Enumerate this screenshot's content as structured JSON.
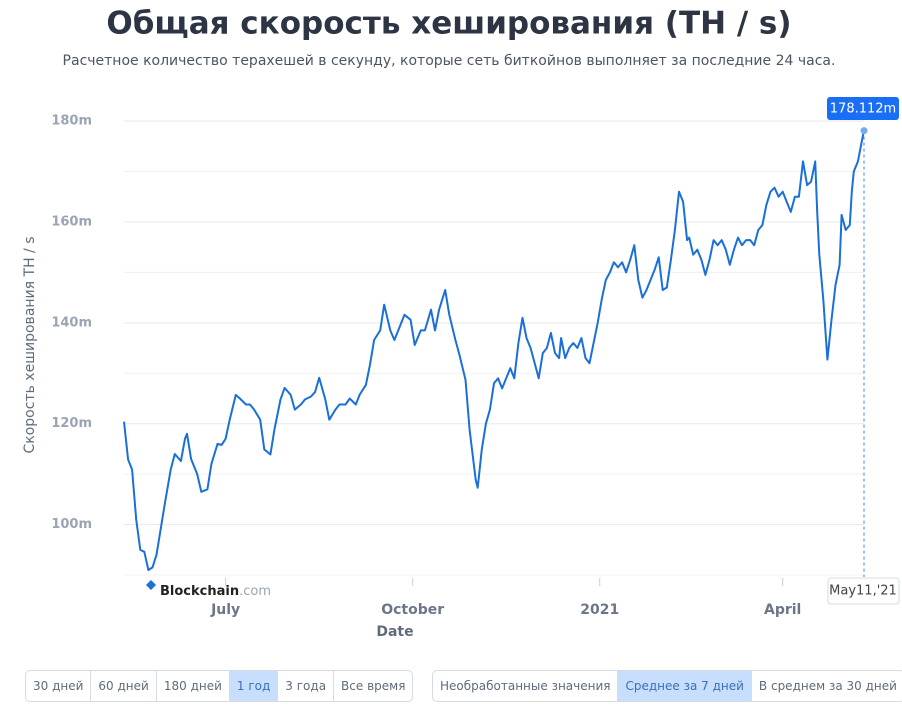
{
  "chart_data": {
    "type": "line",
    "title": "Общая скорость хеширования (TH / s)",
    "subtitle": "Расчетное количество терахешей в секунду, которые сеть биткойнов выполняет за последние 24 часа.",
    "y_axis_label": "Скорость хеширования TH / s",
    "x_axis_label": "Date",
    "brand": "Blockchain",
    "brand_suffix": ".com",
    "color": "#1a6fd8",
    "grid": true,
    "xlim": [
      0,
      364
    ],
    "xticks": [
      {
        "value": 50,
        "label": "July"
      },
      {
        "value": 142,
        "label": "October"
      },
      {
        "value": 234,
        "label": "2021"
      },
      {
        "value": 324,
        "label": "April"
      }
    ],
    "ylim": [
      90000000.0,
      182000000.0
    ],
    "yticks": [
      {
        "value": 100000000.0,
        "label": "100m"
      },
      {
        "value": 120000000.0,
        "label": "120m"
      },
      {
        "value": 140000000.0,
        "label": "140m"
      },
      {
        "value": 160000000.0,
        "label": "160m"
      },
      {
        "value": 180000000.0,
        "label": "180m"
      }
    ],
    "y_minor_ticks": [
      90000000.0,
      110000000.0,
      130000000.0,
      150000000.0,
      170000000.0
    ],
    "x": [
      0,
      2,
      4,
      6,
      8,
      10,
      12,
      14,
      16,
      18,
      20,
      23,
      25,
      28,
      30,
      31,
      33,
      36,
      38,
      41,
      43,
      46,
      48,
      50,
      52,
      55,
      57,
      60,
      62,
      64,
      67,
      69,
      72,
      74,
      77,
      79,
      82,
      84,
      87,
      89,
      92,
      94,
      96,
      99,
      101,
      104,
      106,
      109,
      111,
      114,
      116,
      119,
      121,
      123,
      126,
      128,
      131,
      133,
      136,
      138,
      141,
      143,
      146,
      148,
      151,
      153,
      155,
      158,
      160,
      163,
      165,
      168,
      170,
      173,
      174,
      176,
      178,
      180,
      182,
      184,
      186,
      188,
      190,
      192,
      194,
      196,
      198,
      200,
      202,
      204,
      206,
      208,
      210,
      212,
      214,
      215,
      217,
      219,
      221,
      223,
      225,
      227,
      229,
      231,
      233,
      235,
      237,
      239,
      241,
      243,
      245,
      247,
      249,
      251,
      253,
      255,
      257,
      259,
      261,
      263,
      265,
      267,
      269,
      271,
      273,
      275,
      277,
      278,
      280,
      282,
      284,
      286,
      288,
      290,
      292,
      294,
      296,
      298,
      300,
      302,
      304,
      306,
      308,
      310,
      312,
      314,
      316,
      318,
      320,
      322,
      324,
      326,
      328,
      330,
      332,
      334,
      336,
      338,
      340,
      341,
      342,
      344,
      346,
      348,
      350,
      352,
      353,
      355,
      357,
      358,
      359,
      361,
      363,
      364
    ],
    "values": [
      120400000.0,
      112900000.0,
      110900000.0,
      101000000.0,
      95000000.0,
      94600000.0,
      91000000.0,
      91500000.0,
      94000000.0,
      99000000.0,
      104000000.0,
      111000000.0,
      114000000.0,
      112600000.0,
      117000000.0,
      118000000.0,
      113000000.0,
      110000000.0,
      106500000.0,
      107000000.0,
      112000000.0,
      116000000.0,
      115800000.0,
      117000000.0,
      120800000.0,
      125700000.0,
      125000000.0,
      123800000.0,
      123800000.0,
      122800000.0,
      120800000.0,
      114900000.0,
      113900000.0,
      118800000.0,
      124800000.0,
      127100000.0,
      125700000.0,
      122800000.0,
      123800000.0,
      124800000.0,
      125400000.0,
      126300000.0,
      129100000.0,
      124800000.0,
      120800000.0,
      122800000.0,
      123800000.0,
      123800000.0,
      125000000.0,
      123800000.0,
      125800000.0,
      127700000.0,
      131700000.0,
      136600000.0,
      138500000.0,
      143600000.0,
      138500000.0,
      136600000.0,
      139600000.0,
      141600000.0,
      140600000.0,
      135600000.0,
      138500000.0,
      138500000.0,
      142600000.0,
      138500000.0,
      142600000.0,
      146500000.0,
      141600000.0,
      136600000.0,
      133700000.0,
      128700000.0,
      118800000.0,
      108900000.0,
      107300000.0,
      114900000.0,
      120000000.0,
      122800000.0,
      128000000.0,
      129000000.0,
      127000000.0,
      129000000.0,
      131000000.0,
      129000000.0,
      136000000.0,
      141000000.0,
      137000000.0,
      135000000.0,
      132000000.0,
      129000000.0,
      134000000.0,
      135000000.0,
      138000000.0,
      134000000.0,
      133000000.0,
      137000000.0,
      133000000.0,
      135000000.0,
      136000000.0,
      135000000.0,
      137000000.0,
      133000000.0,
      132000000.0,
      136000000.0,
      140000000.0,
      144600000.0,
      148500000.0,
      150000000.0,
      152000000.0,
      151000000.0,
      152000000.0,
      150000000.0,
      152500000.0,
      155400000.0,
      148500000.0,
      145000000.0,
      146500000.0,
      148500000.0,
      150500000.0,
      153000000.0,
      146500000.0,
      147000000.0,
      152500000.0,
      158400000.0,
      166000000.0,
      164000000.0,
      156400000.0,
      156900000.0,
      153500000.0,
      154500000.0,
      152500000.0,
      149500000.0,
      152500000.0,
      156400000.0,
      155400000.0,
      156400000.0,
      154500000.0,
      151500000.0,
      154500000.0,
      156900000.0,
      155400000.0,
      156400000.0,
      156400000.0,
      155400000.0,
      158400000.0,
      159400000.0,
      163400000.0,
      166000000.0,
      166800000.0,
      165000000.0,
      166000000.0,
      164000000.0,
      162000000.0,
      165000000.0,
      165000000.0,
      172000000.0,
      167300000.0,
      168000000.0,
      172000000.0,
      162000000.0,
      153500000.0,
      144600000.0,
      132700000.0,
      140600000.0,
      147500000.0,
      151500000.0,
      161400000.0,
      158400000.0,
      159400000.0,
      166000000.0,
      170000000.0,
      172000000.0,
      176200000.0,
      178112000.0
    ],
    "hover_label": "178.112m",
    "hover_date": "May11,'21"
  },
  "controls": {
    "ranges": [
      "30 дней",
      "60 дней",
      "180 дней",
      "1 год",
      "3 года",
      "Все время"
    ],
    "range_selected": 3,
    "averages": [
      "Необработанные значения",
      "Среднее за 7 дней",
      "В среднем за 30 дней"
    ],
    "average_selected": 1
  }
}
